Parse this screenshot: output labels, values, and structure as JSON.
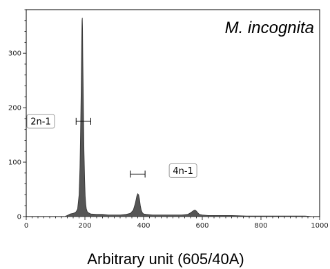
{
  "chart_data": {
    "type": "area",
    "title": "",
    "annotation": "M. incognita",
    "xlabel": "Arbitrary unit (605/40A)",
    "ylabel": "",
    "xlim": [
      0,
      1000
    ],
    "ylim": [
      0,
      380
    ],
    "xticks": [
      0,
      200,
      400,
      600,
      800,
      1000
    ],
    "yticks": [
      0,
      100,
      200,
      300
    ],
    "grid": false,
    "fill_color": "#555555",
    "series": [
      {
        "x": [
          130,
          140,
          150,
          160,
          165,
          170,
          175,
          180,
          183,
          185,
          187,
          189,
          190,
          191,
          192,
          193,
          195,
          197,
          199,
          201,
          203,
          205,
          208,
          212,
          220,
          240,
          260,
          280,
          300,
          320,
          340,
          355,
          365,
          372,
          377,
          380,
          383,
          386,
          389,
          392,
          396,
          400,
          410,
          430,
          460,
          500,
          530,
          550,
          560,
          570,
          575,
          580,
          585,
          590,
          600,
          620,
          650,
          700,
          750,
          800,
          850,
          900,
          950,
          980
        ],
        "y": [
          0,
          2,
          5,
          6,
          7,
          9,
          14,
          40,
          90,
          150,
          230,
          320,
          360,
          365,
          345,
          290,
          200,
          120,
          70,
          38,
          22,
          14,
          9,
          7,
          5,
          4,
          4,
          3,
          3,
          3,
          4,
          6,
          12,
          25,
          38,
          42,
          40,
          32,
          20,
          12,
          7,
          5,
          4,
          3,
          3,
          3,
          3,
          4,
          7,
          11,
          12,
          10,
          7,
          4,
          3,
          2,
          2,
          2,
          1,
          1,
          1,
          1,
          1,
          0
        ]
      }
    ],
    "gates": [
      {
        "label": "2n-1",
        "x_start": 170,
        "x_end": 220,
        "y": 175
      },
      {
        "label": "4n-1",
        "x_start": 355,
        "x_end": 405,
        "y": 78
      }
    ]
  }
}
